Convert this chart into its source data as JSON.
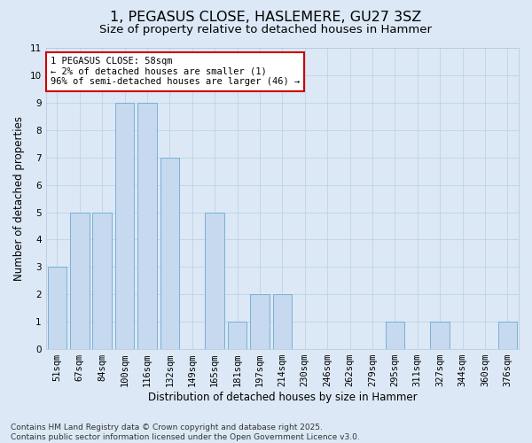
{
  "title1": "1, PEGASUS CLOSE, HASLEMERE, GU27 3SZ",
  "title2": "Size of property relative to detached houses in Hammer",
  "xlabel": "Distribution of detached houses by size in Hammer",
  "ylabel": "Number of detached properties",
  "categories": [
    "51sqm",
    "67sqm",
    "84sqm",
    "100sqm",
    "116sqm",
    "132sqm",
    "149sqm",
    "165sqm",
    "181sqm",
    "197sqm",
    "214sqm",
    "230sqm",
    "246sqm",
    "262sqm",
    "279sqm",
    "295sqm",
    "311sqm",
    "327sqm",
    "344sqm",
    "360sqm",
    "376sqm"
  ],
  "values": [
    3,
    5,
    5,
    9,
    9,
    7,
    0,
    5,
    1,
    2,
    2,
    0,
    0,
    0,
    0,
    1,
    0,
    1,
    0,
    0,
    1
  ],
  "bar_color": "#c6d9ee",
  "bar_edge_color": "#6aaad4",
  "annotation_text": "1 PEGASUS CLOSE: 58sqm\n← 2% of detached houses are smaller (1)\n96% of semi-detached houses are larger (46) →",
  "annotation_box_color": "white",
  "annotation_box_edge": "#cc0000",
  "background_color": "#dce8f5",
  "plot_bg_color": "#dce8f5",
  "ylim": [
    0,
    11
  ],
  "yticks": [
    0,
    1,
    2,
    3,
    4,
    5,
    6,
    7,
    8,
    9,
    10,
    11
  ],
  "footer1": "Contains HM Land Registry data © Crown copyright and database right 2025.",
  "footer2": "Contains public sector information licensed under the Open Government Licence v3.0.",
  "title_fontsize": 11.5,
  "subtitle_fontsize": 9.5,
  "axis_label_fontsize": 8.5,
  "tick_fontsize": 7.5,
  "annotation_fontsize": 7.5,
  "footer_fontsize": 6.5,
  "grid_color": "#b8cfe0"
}
